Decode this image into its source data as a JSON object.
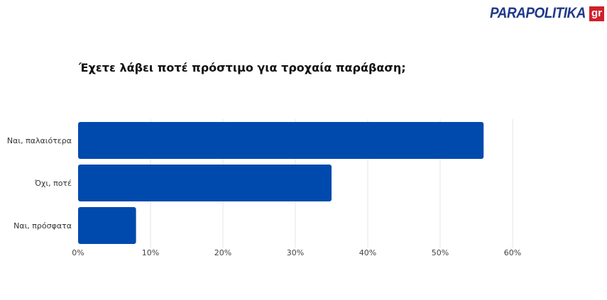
{
  "logo": {
    "text": "PARAPOLITIKA",
    "suffix": "gr"
  },
  "chart_data": {
    "type": "bar",
    "orientation": "horizontal",
    "title": "Έχετε λάβει ποτέ πρόστιμο για τροχαία παράβαση;",
    "categories": [
      "Ναι, παλαιότερα",
      "Όχι, ποτέ",
      "Ναι, πρόσφατα"
    ],
    "values": [
      56,
      35,
      8
    ],
    "xlim": [
      0,
      60
    ],
    "xticks": [
      0,
      10,
      20,
      30,
      40,
      50,
      60
    ],
    "xtick_labels": [
      "0%",
      "10%",
      "20%",
      "30%",
      "40%",
      "50%",
      "60%"
    ],
    "xlabel": "",
    "ylabel": "",
    "grid": true,
    "bar_color": "#004aad"
  }
}
